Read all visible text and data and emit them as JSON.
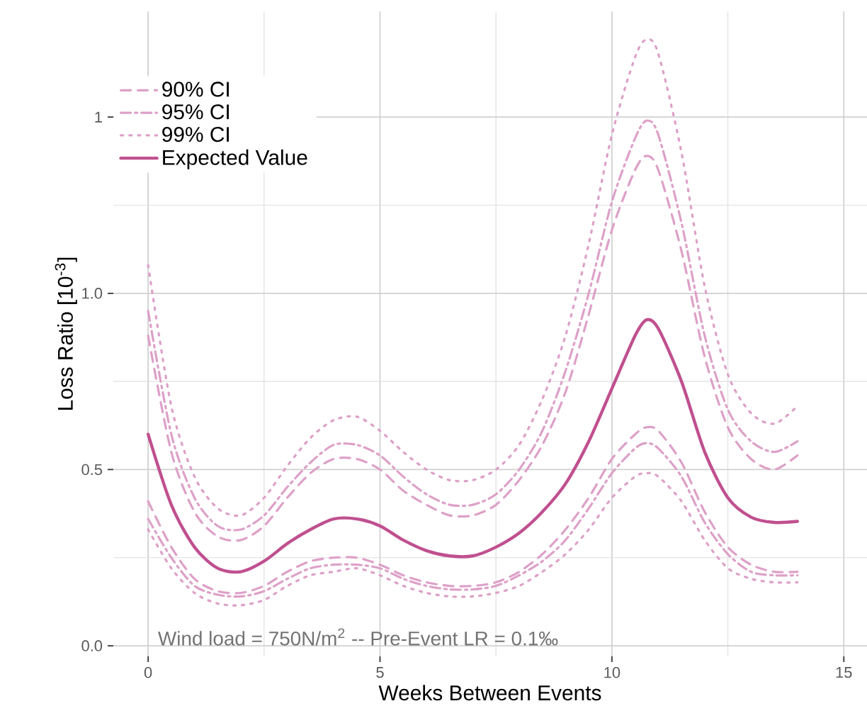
{
  "chart_data": {
    "type": "line",
    "xlabel": "Weeks Between Events",
    "ylabel": "Loss Ratio [10$^{-3}$]",
    "annotations": [
      "Wind load = 750N/m$^{2}$  --  Pre-Event LR = 0.1‰"
    ],
    "x": [
      0,
      0.5,
      1,
      1.5,
      2,
      2.5,
      3,
      3.5,
      4,
      4.5,
      5,
      5.5,
      6,
      6.5,
      7,
      7.5,
      8,
      8.5,
      9,
      9.5,
      10,
      10.5,
      10.75,
      11,
      11.5,
      12,
      12.5,
      13,
      13.5,
      14
    ],
    "series": [
      {
        "name": "90% CI",
        "color": "#dda0c8",
        "line_style": "dashed",
        "values": [
          0.88,
          0.55,
          0.38,
          0.31,
          0.3,
          0.34,
          0.42,
          0.49,
          0.53,
          0.53,
          0.5,
          0.44,
          0.4,
          0.37,
          0.37,
          0.4,
          0.47,
          0.57,
          0.72,
          0.94,
          1.18,
          1.35,
          1.39,
          1.35,
          1.12,
          0.82,
          0.62,
          0.53,
          0.5,
          0.54
        ]
      },
      {
        "color": "#dda0c8",
        "line_style": "dashed",
        "values": [
          0.41,
          0.28,
          0.19,
          0.155,
          0.15,
          0.17,
          0.21,
          0.24,
          0.25,
          0.25,
          0.23,
          0.2,
          0.18,
          0.17,
          0.17,
          0.18,
          0.21,
          0.26,
          0.33,
          0.42,
          0.53,
          0.6,
          0.62,
          0.61,
          0.52,
          0.38,
          0.28,
          0.23,
          0.21,
          0.21
        ]
      },
      {
        "name": "95% CI",
        "color": "#dda0c8",
        "line_style": "dashdot",
        "values": [
          0.95,
          0.6,
          0.42,
          0.34,
          0.33,
          0.37,
          0.45,
          0.52,
          0.57,
          0.57,
          0.54,
          0.48,
          0.43,
          0.4,
          0.4,
          0.43,
          0.5,
          0.61,
          0.78,
          1.0,
          1.26,
          1.44,
          1.49,
          1.45,
          1.2,
          0.88,
          0.67,
          0.58,
          0.55,
          0.58
        ]
      },
      {
        "color": "#dda0c8",
        "line_style": "dashdot",
        "values": [
          0.36,
          0.25,
          0.17,
          0.145,
          0.14,
          0.155,
          0.19,
          0.22,
          0.23,
          0.23,
          0.22,
          0.19,
          0.17,
          0.16,
          0.16,
          0.17,
          0.2,
          0.24,
          0.3,
          0.39,
          0.49,
          0.56,
          0.575,
          0.56,
          0.48,
          0.35,
          0.26,
          0.21,
          0.2,
          0.2
        ]
      },
      {
        "name": "99% CI",
        "color": "#dda0c8",
        "line_style": "dotted",
        "values": [
          1.08,
          0.68,
          0.48,
          0.39,
          0.37,
          0.42,
          0.51,
          0.59,
          0.64,
          0.65,
          0.61,
          0.55,
          0.5,
          0.47,
          0.47,
          0.5,
          0.57,
          0.7,
          0.88,
          1.14,
          1.45,
          1.67,
          1.72,
          1.68,
          1.4,
          1.02,
          0.77,
          0.66,
          0.63,
          0.68
        ]
      },
      {
        "color": "#dda0c8",
        "line_style": "dotted",
        "values": [
          0.33,
          0.22,
          0.15,
          0.12,
          0.115,
          0.13,
          0.17,
          0.2,
          0.21,
          0.22,
          0.2,
          0.17,
          0.15,
          0.14,
          0.14,
          0.15,
          0.17,
          0.21,
          0.26,
          0.33,
          0.42,
          0.48,
          0.49,
          0.48,
          0.41,
          0.3,
          0.22,
          0.19,
          0.18,
          0.18
        ]
      },
      {
        "name": "Expected Value",
        "color": "#c0508f",
        "line_style": "solid",
        "values": [
          0.6,
          0.4,
          0.28,
          0.22,
          0.21,
          0.24,
          0.29,
          0.33,
          0.36,
          0.36,
          0.34,
          0.3,
          0.27,
          0.255,
          0.255,
          0.28,
          0.32,
          0.38,
          0.46,
          0.58,
          0.73,
          0.88,
          0.925,
          0.9,
          0.75,
          0.55,
          0.42,
          0.365,
          0.35,
          0.353
        ]
      }
    ],
    "xlim": [
      -0.75,
      15.5
    ],
    "ylim": [
      -0.03,
      1.8
    ],
    "xticks": [
      0,
      5,
      10,
      15
    ],
    "yticks": [
      {
        "value": 0,
        "label": "0.0"
      },
      {
        "value": 0.5,
        "label": "0.5"
      },
      {
        "value": 1.0,
        "label": "1.0"
      },
      {
        "value": 1.5,
        "label": "1"
      }
    ],
    "grid": true,
    "legend": "top left",
    "marker": "none"
  }
}
